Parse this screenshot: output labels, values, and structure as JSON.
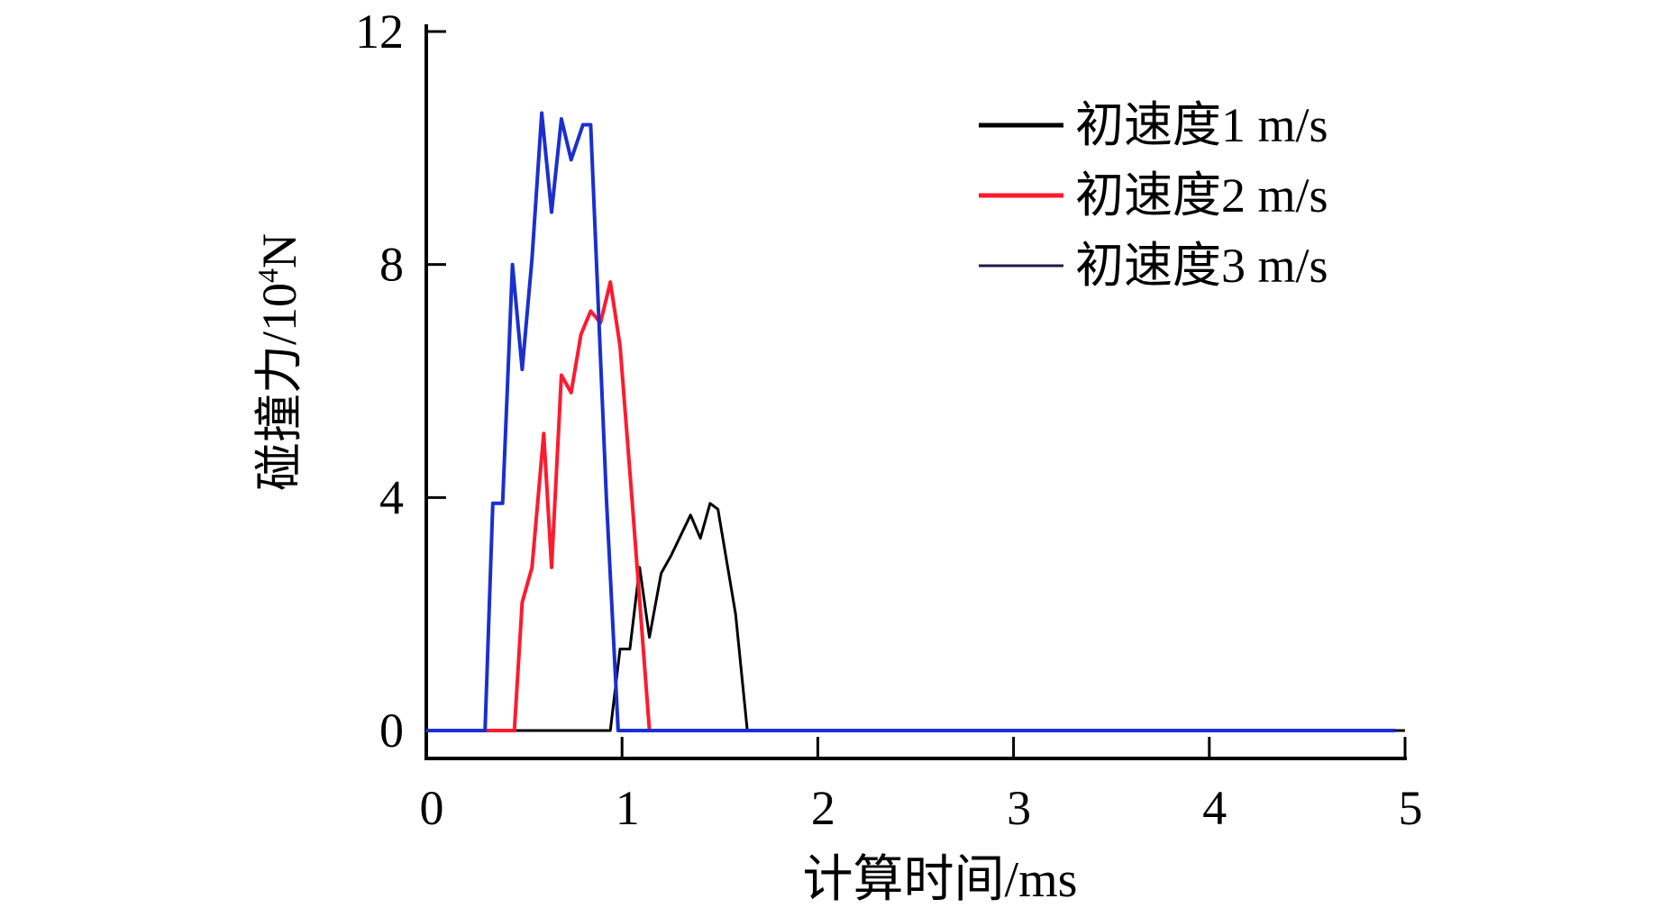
{
  "chart_data": {
    "type": "line",
    "title": "",
    "xlabel": "计算时间/ms",
    "ylabel": "碰撞力/10",
    "ylabel_sup": "4",
    "ylabel_unit": "N",
    "xlim": [
      0,
      5
    ],
    "ylim": [
      0,
      12
    ],
    "xticks": [
      "0",
      "1",
      "2",
      "3",
      "4",
      "5"
    ],
    "yticks": [
      "0",
      "4",
      "8",
      "12"
    ],
    "grid": false,
    "legend_position": "top-right",
    "series": [
      {
        "name": "初速度1 m/s",
        "color": "#000000",
        "x": [
          0,
          0.94,
          0.99,
          1.04,
          1.09,
          1.14,
          1.2,
          1.25,
          1.35,
          1.4,
          1.45,
          1.49,
          1.58,
          1.64,
          5.0
        ],
        "y": [
          0,
          0,
          1.4,
          1.4,
          2.8,
          1.6,
          2.7,
          3.0,
          3.7,
          3.3,
          3.9,
          3.8,
          2.0,
          0,
          0
        ]
      },
      {
        "name": "初速度2 m/s",
        "color": "#ff1a2e",
        "x": [
          0.3,
          0.45,
          0.49,
          0.54,
          0.6,
          0.64,
          0.69,
          0.74,
          0.79,
          0.84,
          0.89,
          0.94,
          0.99,
          1.05,
          1.14
        ],
        "y": [
          0,
          0,
          2.2,
          2.8,
          5.1,
          2.8,
          6.1,
          5.8,
          6.8,
          7.2,
          7.0,
          7.7,
          6.6,
          4.0,
          0
        ]
      },
      {
        "name": "初速度3 m/s",
        "color": "#1a2fd0",
        "legend_color": "#1a1a4a",
        "x": [
          0,
          0.3,
          0.34,
          0.39,
          0.44,
          0.49,
          0.54,
          0.59,
          0.64,
          0.69,
          0.74,
          0.8,
          0.84,
          0.92,
          0.98,
          4.95
        ],
        "y": [
          0,
          0,
          3.9,
          3.9,
          8.0,
          6.2,
          8.1,
          10.6,
          8.9,
          10.5,
          9.8,
          10.4,
          10.4,
          4.0,
          0,
          0
        ]
      }
    ]
  }
}
